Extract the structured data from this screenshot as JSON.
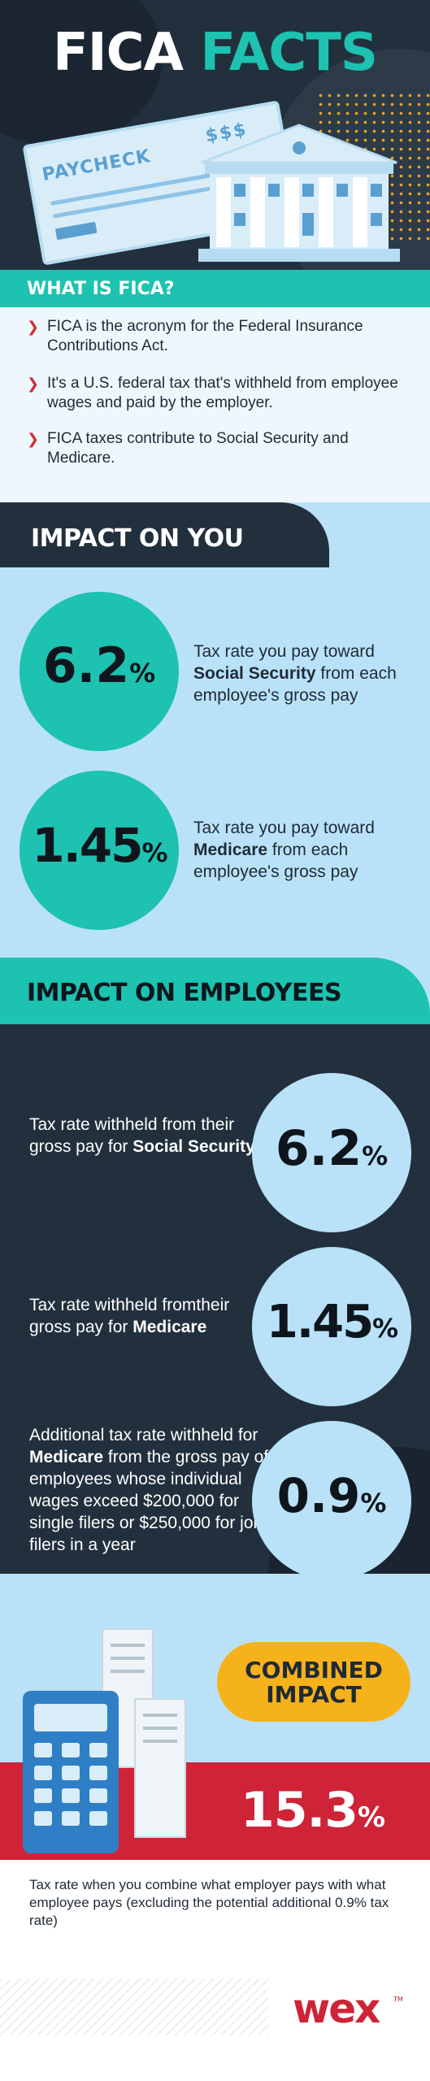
{
  "header": {
    "title_part1": "FICA",
    "title_part2": "FACTS",
    "paycheck_label": "PAYCHECK",
    "paycheck_dollars": "$$$"
  },
  "what_is": {
    "title": "WHAT IS FICA?",
    "bullets": [
      "FICA is the acronym for the Federal Insurance Contributions Act.",
      "It's a U.S. federal tax that's withheld from employee wages and paid by the employer.",
      "FICA taxes contribute to Social Security and Medicare."
    ]
  },
  "impact_you": {
    "title": "IMPACT ON YOU",
    "items": [
      {
        "number": "6.2",
        "suffix": "%",
        "text_pre": "Tax rate you pay toward ",
        "text_bold": "Social Security",
        "text_post": " from each employee's gross pay"
      },
      {
        "number": "1.45",
        "suffix": "%",
        "text_pre": "Tax rate you pay toward ",
        "text_bold": "Medicare",
        "text_post": " from each employee's gross pay"
      }
    ]
  },
  "impact_employees": {
    "title": "IMPACT ON EMPLOYEES",
    "items": [
      {
        "number": "6.2",
        "suffix": "%",
        "text_pre": "Tax rate withheld from their gross pay for ",
        "text_bold": "Social Security",
        "text_post": ""
      },
      {
        "number": "1.45",
        "suffix": "%",
        "text_pre": "Tax rate withheld fromtheir gross pay for ",
        "text_bold": "Medicare",
        "text_post": ""
      },
      {
        "number": "0.9",
        "suffix": "%",
        "text_pre": "Additional tax rate withheld for ",
        "text_bold": "Medicare",
        "text_post": " from the gross pay of employees whose individual wages exceed $200,000 for single filers or $250,000 for joint filers in a year"
      }
    ]
  },
  "combined": {
    "label_line1": "COMBINED",
    "label_line2": "IMPACT",
    "number": "15.3",
    "suffix": "%",
    "caption": "Tax rate when you combine what employer pays with what employee pays (excluding the potential additional 0.9% tax rate)"
  },
  "footer": {
    "logo_text": "wex"
  },
  "colors": {
    "navy": "#22303d",
    "teal": "#1dc2b0",
    "light_blue": "#b9e2f8",
    "red": "#cf2337",
    "gold": "#f6b21b"
  }
}
